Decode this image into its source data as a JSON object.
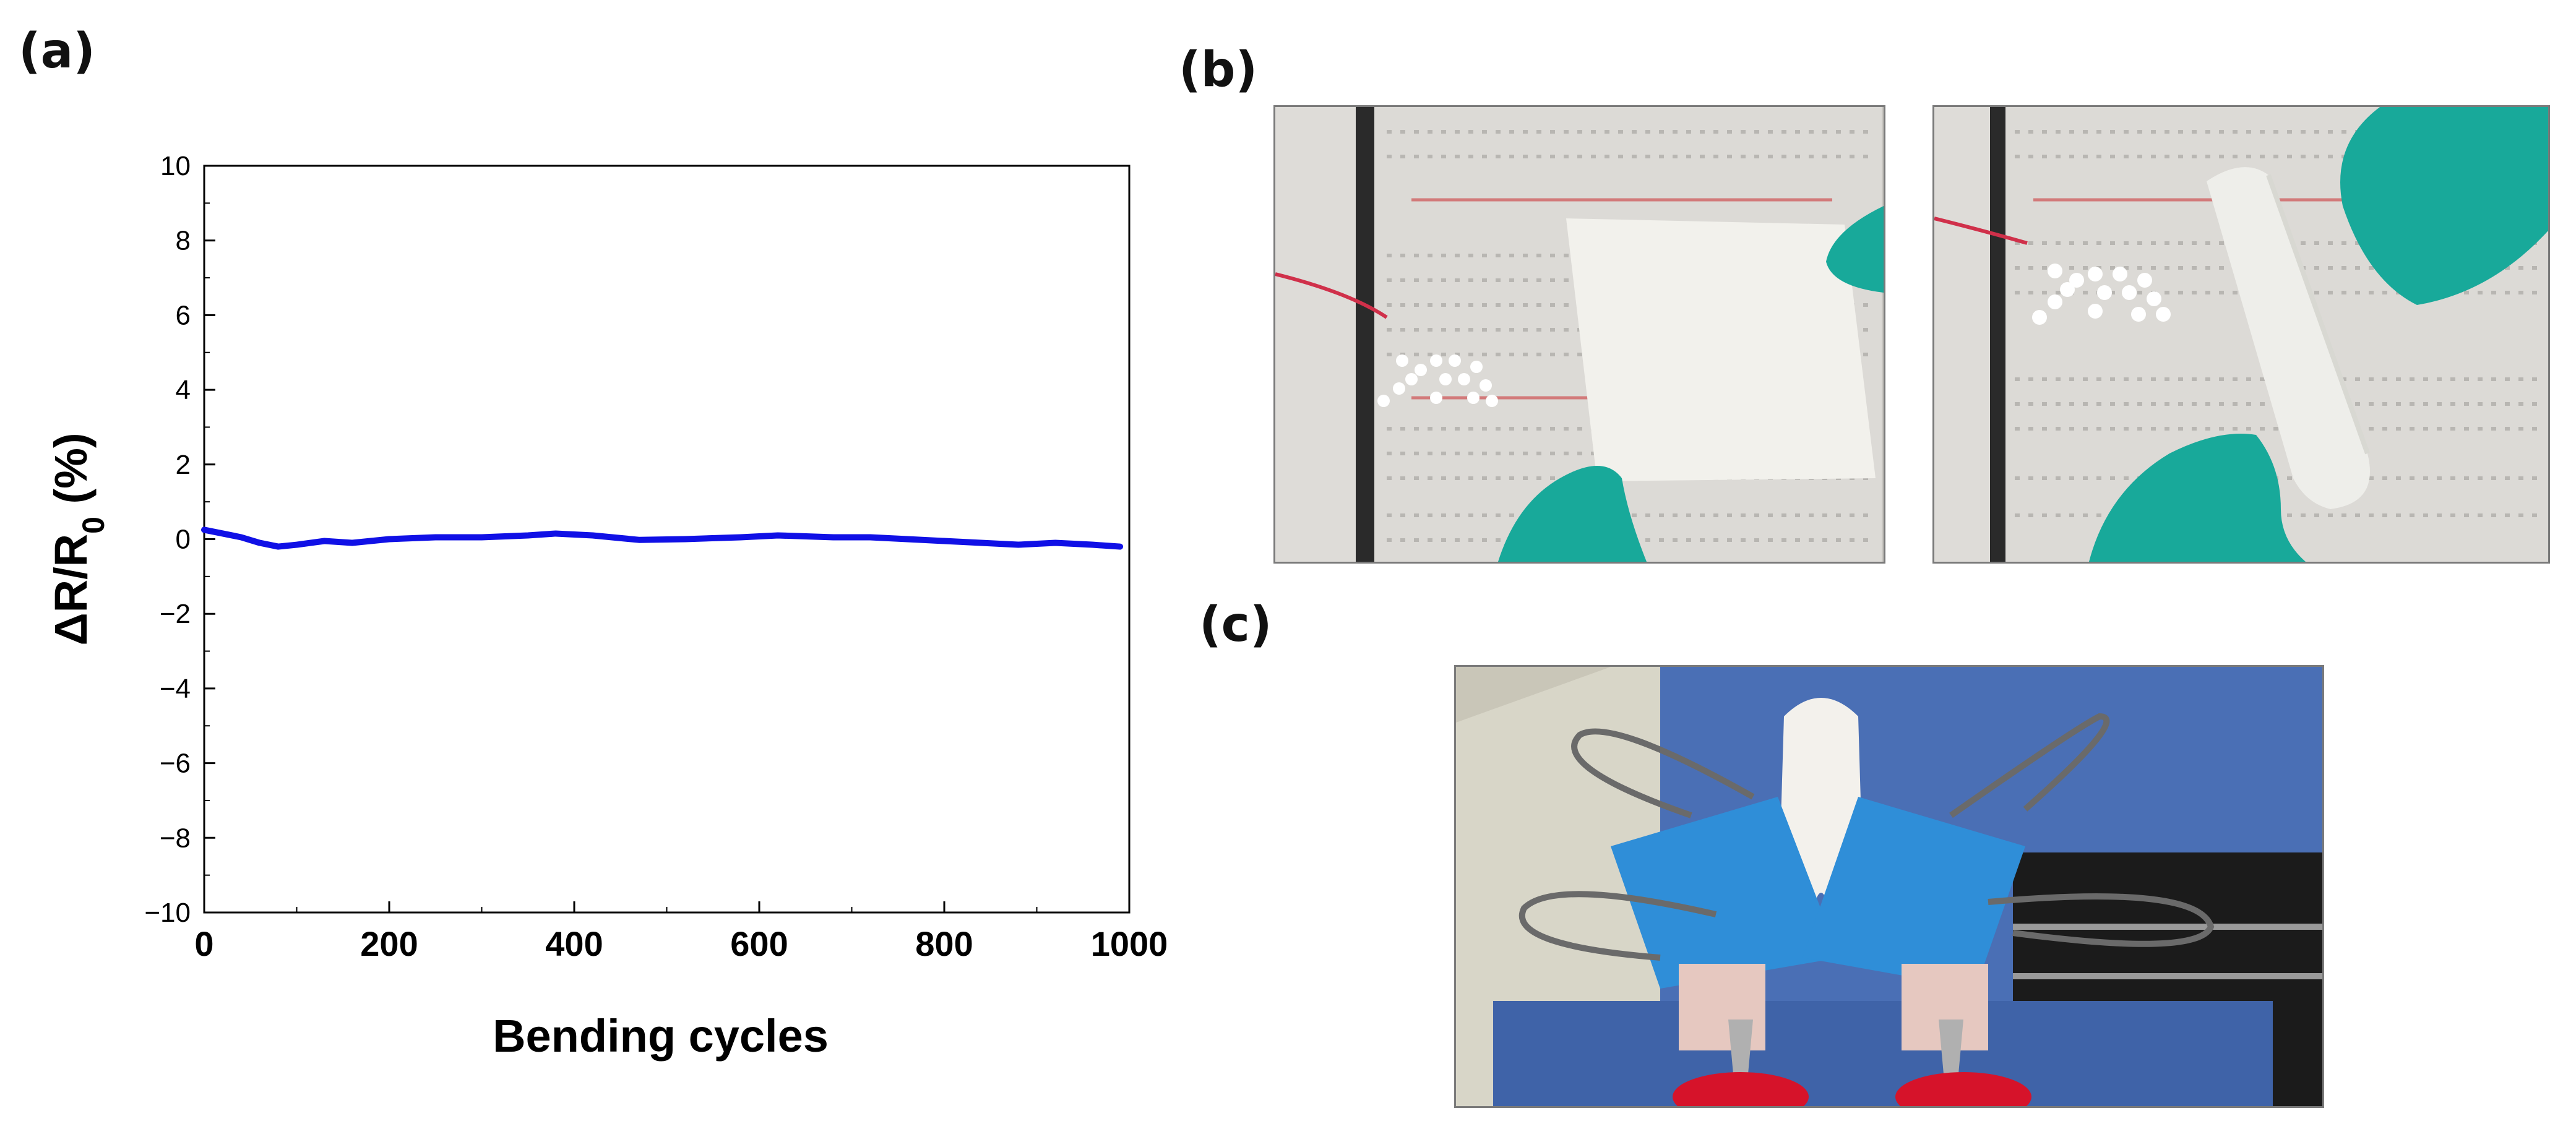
{
  "panels": {
    "a": "(a)",
    "b": "(b)",
    "c": "(c)"
  },
  "chart_data": {
    "type": "line",
    "xlabel": "Bending cycles",
    "ylabel_parts": [
      "ΔR/R",
      "0",
      " (%)"
    ],
    "xlim": [
      0,
      1000
    ],
    "ylim": [
      -10,
      10
    ],
    "xticks": [
      0,
      200,
      400,
      600,
      800,
      1000
    ],
    "yticks": [
      10,
      8,
      6,
      4,
      2,
      0,
      -2,
      -4,
      -6,
      -8,
      -10
    ],
    "ytick_labels": [
      "10",
      "8",
      "6",
      "4",
      "2",
      "0",
      "−2",
      "−4",
      "−6",
      "−8",
      "−10"
    ],
    "grid": false,
    "series": [
      {
        "color": "#1010e6",
        "x": [
          0,
          20,
          40,
          60,
          80,
          100,
          130,
          160,
          200,
          250,
          300,
          350,
          380,
          420,
          470,
          520,
          580,
          620,
          680,
          720,
          760,
          800,
          840,
          880,
          920,
          960,
          990
        ],
        "y": [
          0.25,
          0.15,
          0.05,
          -0.1,
          -0.2,
          -0.15,
          -0.05,
          -0.1,
          0.0,
          0.05,
          0.05,
          0.1,
          0.15,
          0.1,
          -0.02,
          0.0,
          0.05,
          0.1,
          0.05,
          0.05,
          0.0,
          -0.05,
          -0.1,
          -0.15,
          -0.1,
          -0.15,
          -0.2
        ]
      }
    ]
  },
  "colors": {
    "board": "#dcdad6",
    "glove": "#18a99a",
    "sheet": "#f2f1ec",
    "led": "#ffffff",
    "blue_clip": "#2f8ed8",
    "red_handle": "#d6132a"
  }
}
